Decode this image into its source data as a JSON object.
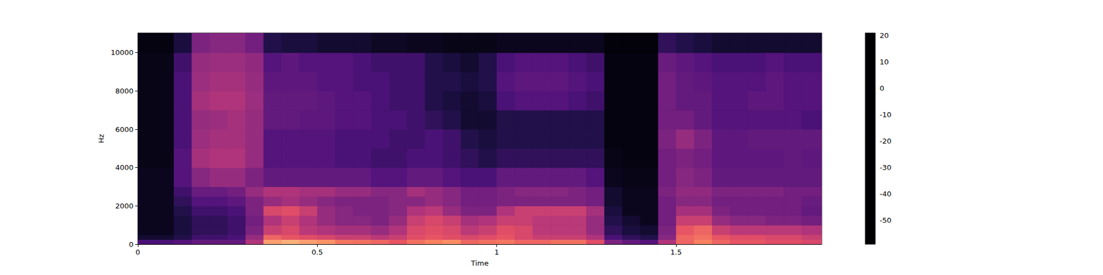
{
  "chart_data": {
    "type": "heatmap",
    "x_label": "Time",
    "y_label": "Hz",
    "xlim": [
      0,
      1.906
    ],
    "ylim": [
      0,
      11025
    ],
    "xticks": [
      0,
      0.5,
      1,
      1.5
    ],
    "yticks": [
      0,
      2000,
      4000,
      6000,
      8000,
      10000
    ],
    "grid": false,
    "time_edges": [
      0,
      0.05,
      0.1,
      0.15,
      0.2,
      0.25,
      0.3,
      0.35,
      0.4,
      0.45,
      0.5,
      0.55,
      0.6,
      0.65,
      0.7,
      0.75,
      0.8,
      0.85,
      0.9,
      0.95,
      1.0,
      1.05,
      1.1,
      1.15,
      1.2,
      1.25,
      1.3,
      1.35,
      1.4,
      1.45,
      1.5,
      1.55,
      1.6,
      1.65,
      1.7,
      1.75,
      1.8,
      1.85,
      1.906
    ],
    "frequency_edges": [
      0,
      250,
      500,
      1000,
      1500,
      2000,
      2500,
      3000,
      4000,
      5000,
      6000,
      7000,
      8000,
      9000,
      10000,
      11025
    ],
    "cells": [
      [
        -40,
        -40,
        -38,
        -35,
        -35,
        -35,
        -20,
        5,
        8,
        5,
        3,
        -2,
        -3,
        -5,
        -8,
        -3,
        0,
        2,
        -5,
        -3,
        -2,
        -5,
        -5,
        -3,
        -3,
        -10,
        -30,
        -35,
        -38,
        -20,
        -5,
        0,
        -5,
        -8,
        -8,
        -10,
        -10,
        -12
      ],
      [
        -52,
        -52,
        -48,
        -42,
        -42,
        -40,
        -25,
        -5,
        -8,
        -10,
        -12,
        -15,
        -15,
        -18,
        -15,
        -10,
        -8,
        -10,
        -12,
        -10,
        -8,
        -12,
        -15,
        -15,
        -15,
        -20,
        -40,
        -45,
        -48,
        -28,
        -5,
        -3,
        -8,
        -10,
        -10,
        -12,
        -12,
        -15
      ],
      [
        -55,
        -55,
        -50,
        -45,
        -45,
        -42,
        -30,
        -15,
        -12,
        -18,
        -20,
        -22,
        -22,
        -25,
        -20,
        -12,
        -10,
        -12,
        -18,
        -15,
        -10,
        -12,
        -18,
        -18,
        -18,
        -25,
        -45,
        -50,
        -52,
        -30,
        -8,
        -5,
        -15,
        -18,
        -18,
        -18,
        -18,
        -20
      ],
      [
        -55,
        -55,
        -50,
        -45,
        -45,
        -42,
        -32,
        -20,
        -15,
        -20,
        -25,
        -28,
        -28,
        -30,
        -25,
        -15,
        -12,
        -15,
        -22,
        -20,
        -15,
        -15,
        -18,
        -18,
        -18,
        -25,
        -48,
        -52,
        -55,
        -32,
        -15,
        -15,
        -25,
        -28,
        -28,
        -30,
        -30,
        -32
      ],
      [
        -55,
        -55,
        -48,
        -42,
        -42,
        -40,
        -30,
        -12,
        -10,
        -15,
        -25,
        -28,
        -30,
        -30,
        -28,
        -20,
        -18,
        -25,
        -30,
        -30,
        -20,
        -15,
        -15,
        -15,
        -15,
        -22,
        -50,
        -55,
        -55,
        -32,
        -22,
        -22,
        -30,
        -32,
        -32,
        -32,
        -32,
        -35
      ],
      [
        -55,
        -55,
        -45,
        -38,
        -38,
        -36,
        -30,
        -25,
        -22,
        -25,
        -28,
        -30,
        -30,
        -30,
        -28,
        -28,
        -25,
        -28,
        -32,
        -32,
        -30,
        -30,
        -30,
        -30,
        -30,
        -32,
        -52,
        -55,
        -55,
        -32,
        -28,
        -28,
        -32,
        -32,
        -32,
        -32,
        -32,
        -34
      ],
      [
        -55,
        -55,
        -42,
        -34,
        -34,
        -32,
        -25,
        -20,
        -20,
        -22,
        -22,
        -25,
        -25,
        -28,
        -28,
        -22,
        -25,
        -28,
        -32,
        -32,
        -30,
        -28,
        -28,
        -28,
        -30,
        -32,
        -52,
        -55,
        -55,
        -30,
        -26,
        -26,
        -30,
        -30,
        -30,
        -30,
        -32,
        -32
      ],
      [
        -55,
        -55,
        -38,
        -28,
        -25,
        -25,
        -30,
        -35,
        -35,
        -35,
        -35,
        -35,
        -35,
        -38,
        -38,
        -35,
        -35,
        -38,
        -40,
        -40,
        -35,
        -35,
        -35,
        -35,
        -35,
        -38,
        -55,
        -56,
        -56,
        -32,
        -28,
        -30,
        -35,
        -35,
        -35,
        -35,
        -35,
        -35
      ],
      [
        -56,
        -56,
        -38,
        -22,
        -20,
        -20,
        -25,
        -38,
        -38,
        -38,
        -38,
        -40,
        -40,
        -42,
        -42,
        -40,
        -40,
        -42,
        -45,
        -48,
        -45,
        -45,
        -45,
        -45,
        -45,
        -45,
        -56,
        -57,
        -57,
        -32,
        -30,
        -32,
        -36,
        -36,
        -36,
        -36,
        -35,
        -36
      ],
      [
        -56,
        -56,
        -40,
        -24,
        -22,
        -22,
        -25,
        -38,
        -38,
        -38,
        -38,
        -40,
        -40,
        -40,
        -42,
        -42,
        -40,
        -42,
        -48,
        -50,
        -48,
        -48,
        -48,
        -48,
        -48,
        -48,
        -57,
        -57,
        -57,
        -30,
        -25,
        -30,
        -36,
        -36,
        -35,
        -35,
        -35,
        -35
      ],
      [
        -56,
        -56,
        -40,
        -25,
        -24,
        -22,
        -25,
        -35,
        -35,
        -36,
        -36,
        -38,
        -38,
        -40,
        -40,
        -42,
        -45,
        -48,
        -52,
        -52,
        -48,
        -48,
        -48,
        -48,
        -48,
        -48,
        -57,
        -57,
        -57,
        -32,
        -32,
        -35,
        -38,
        -38,
        -38,
        -38,
        -38,
        -40
      ],
      [
        -56,
        -56,
        -40,
        -22,
        -20,
        -20,
        -24,
        -35,
        -35,
        -35,
        -36,
        -38,
        -38,
        -40,
        -42,
        -42,
        -48,
        -50,
        -52,
        -50,
        -40,
        -38,
        -38,
        -38,
        -40,
        -42,
        -57,
        -57,
        -57,
        -32,
        -35,
        -35,
        -38,
        -38,
        -36,
        -36,
        -38,
        -38
      ],
      [
        -56,
        -56,
        -40,
        -24,
        -22,
        -22,
        -25,
        -36,
        -36,
        -36,
        -38,
        -38,
        -40,
        -40,
        -42,
        -42,
        -48,
        -48,
        -50,
        -48,
        -38,
        -36,
        -36,
        -36,
        -38,
        -40,
        -57,
        -57,
        -57,
        -32,
        -35,
        -36,
        -38,
        -38,
        -38,
        -36,
        -38,
        -38
      ],
      [
        -56,
        -56,
        -42,
        -25,
        -24,
        -24,
        -26,
        -38,
        -36,
        -38,
        -38,
        -38,
        -40,
        -42,
        -42,
        -42,
        -48,
        -50,
        -52,
        -48,
        -40,
        -38,
        -38,
        -38,
        -40,
        -42,
        -57,
        -57,
        -57,
        -34,
        -36,
        -38,
        -40,
        -40,
        -40,
        -38,
        -40,
        -40
      ],
      [
        -57,
        -57,
        -50,
        -30,
        -28,
        -28,
        -32,
        -48,
        -50,
        -50,
        -52,
        -52,
        -52,
        -54,
        -54,
        -55,
        -55,
        -56,
        -56,
        -56,
        -55,
        -55,
        -55,
        -55,
        -55,
        -55,
        -58,
        -58,
        -58,
        -45,
        -48,
        -50,
        -52,
        -52,
        -52,
        -52,
        -52,
        -52
      ]
    ],
    "colorbar": {
      "range": [
        -59,
        21
      ],
      "ticks": [
        -50,
        -40,
        -30,
        -20,
        -10,
        0,
        10,
        20
      ]
    }
  }
}
